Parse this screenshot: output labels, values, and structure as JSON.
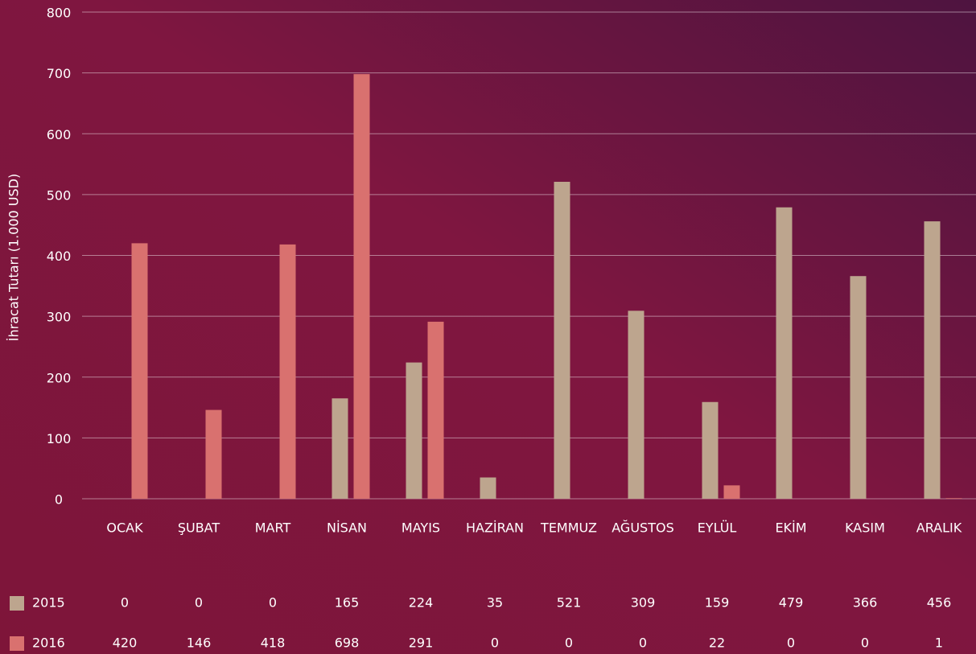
{
  "chart_data": {
    "type": "bar",
    "y_label": "İhracat Tutarı (1.000 USD)",
    "categories": [
      "OCAK",
      "ŞUBAT",
      "MART",
      "NİSAN",
      "MAYIS",
      "HAZİRAN",
      "TEMMUZ",
      "AĞUSTOS",
      "EYLÜL",
      "EKİM",
      "KASIM",
      "ARALIK"
    ],
    "series": [
      {
        "name": "2015",
        "color": "#bda58e",
        "values": [
          0,
          0,
          0,
          165,
          224,
          35,
          521,
          309,
          159,
          479,
          366,
          456
        ]
      },
      {
        "name": "2016",
        "color": "#d9716f",
        "values": [
          420,
          146,
          418,
          698,
          291,
          0,
          0,
          0,
          22,
          0,
          0,
          1
        ]
      }
    ],
    "ylim": [
      0,
      800
    ],
    "yticks": [
      0,
      100,
      200,
      300,
      400,
      500,
      600,
      700,
      800
    ],
    "grid": true
  }
}
